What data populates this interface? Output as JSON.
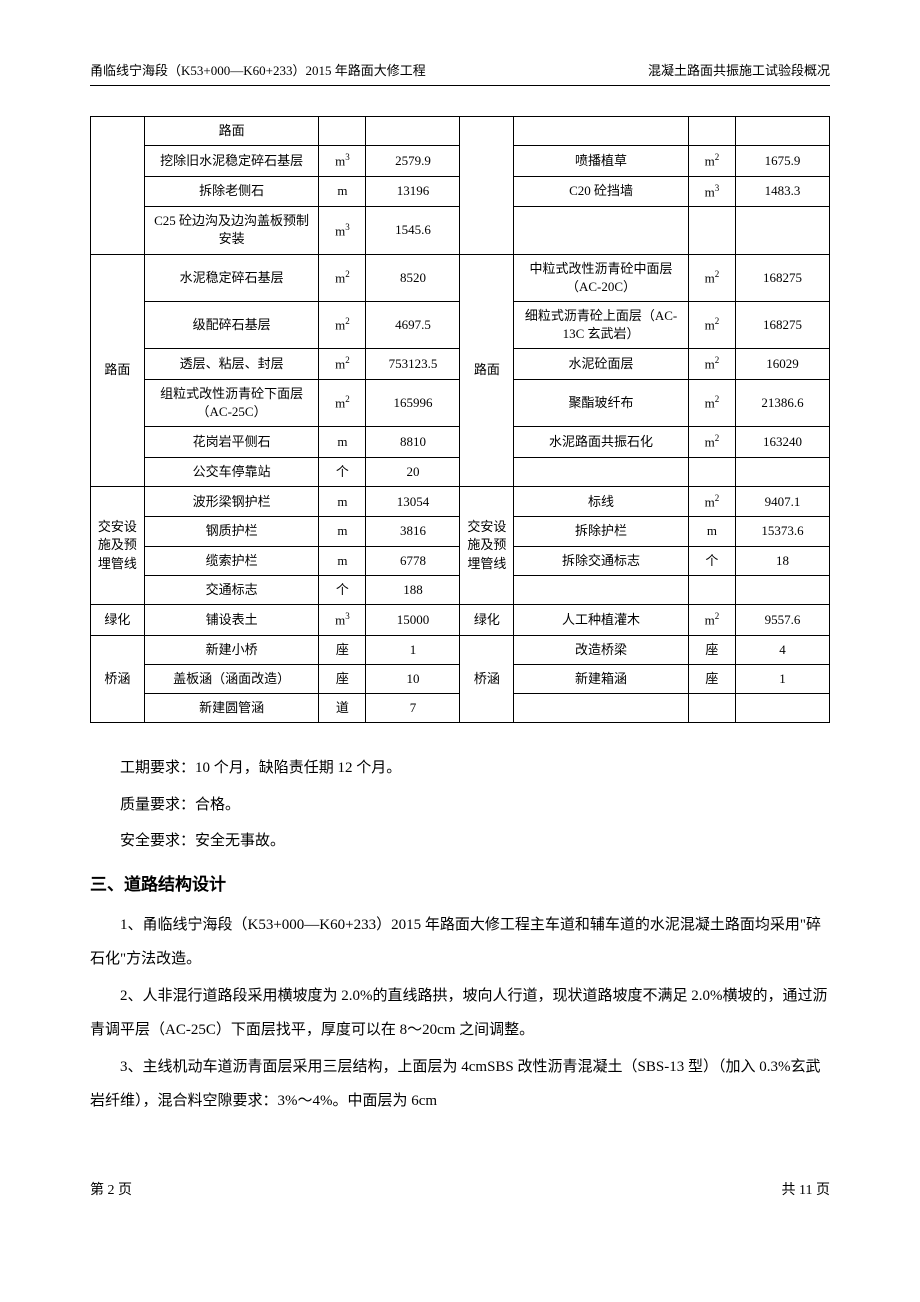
{
  "header": {
    "left": "甬临线宁海段（K53+000—K60+233）2015 年路面大修工程",
    "right": "混凝土路面共振施工试验段概况"
  },
  "table": {
    "rows": [
      {
        "c1": "",
        "c2": "路面",
        "c3": "",
        "c4": "",
        "c5": "",
        "c6": "",
        "c7": "",
        "c8": ""
      },
      {
        "c1": "",
        "c2": "挖除旧水泥稳定碎石基层",
        "c3": "m³",
        "c4": "2579.9",
        "c5": "",
        "c6": "喷播植草",
        "c7": "m²",
        "c8": "1675.9"
      },
      {
        "c1": "",
        "c2": "拆除老侧石",
        "c3": "m",
        "c4": "13196",
        "c5": "",
        "c6": "C20 砼挡墙",
        "c7": "m³",
        "c8": "1483.3"
      },
      {
        "c1": "",
        "c2": "C25 砼边沟及边沟盖板预制安装",
        "c3": "m³",
        "c4": "1545.6",
        "c5": "",
        "c6": "",
        "c7": "",
        "c8": ""
      },
      {
        "c1": "路面",
        "c2": "水泥稳定碎石基层",
        "c3": "m²",
        "c4": "8520",
        "c5": "路面",
        "c6": "中粒式改性沥青砼中面层（AC-20C）",
        "c7": "m²",
        "c8": "168275"
      },
      {
        "c1": "",
        "c2": "级配碎石基层",
        "c3": "m²",
        "c4": "4697.5",
        "c5": "",
        "c6": "细粒式沥青砼上面层（AC-13C 玄武岩）",
        "c7": "m²",
        "c8": "168275"
      },
      {
        "c1": "",
        "c2": "透层、粘层、封层",
        "c3": "m²",
        "c4": "753123.5",
        "c5": "",
        "c6": "水泥砼面层",
        "c7": "m²",
        "c8": "16029"
      },
      {
        "c1": "",
        "c2": "组粒式改性沥青砼下面层（AC-25C）",
        "c3": "m²",
        "c4": "165996",
        "c5": "",
        "c6": "聚酯玻纤布",
        "c7": "m²",
        "c8": "21386.6"
      },
      {
        "c1": "",
        "c2": "花岗岩平侧石",
        "c3": "m",
        "c4": "8810",
        "c5": "",
        "c6": "水泥路面共振石化",
        "c7": "m²",
        "c8": "163240"
      },
      {
        "c1": "",
        "c2": "公交车停靠站",
        "c3": "个",
        "c4": "20",
        "c5": "",
        "c6": "",
        "c7": "",
        "c8": ""
      },
      {
        "c1": "交安设施及预埋管线",
        "c2": "波形梁钢护栏",
        "c3": "m",
        "c4": "13054",
        "c5": "交安设施及预埋管线",
        "c6": "标线",
        "c7": "m²",
        "c8": "9407.1"
      },
      {
        "c1": "",
        "c2": "钢质护栏",
        "c3": "m",
        "c4": "3816",
        "c5": "",
        "c6": "拆除护栏",
        "c7": "m",
        "c8": "15373.6"
      },
      {
        "c1": "",
        "c2": "缆索护栏",
        "c3": "m",
        "c4": "6778",
        "c5": "",
        "c6": "拆除交通标志",
        "c7": "个",
        "c8": "18"
      },
      {
        "c1": "",
        "c2": "交通标志",
        "c3": "个",
        "c4": "188",
        "c5": "",
        "c6": "",
        "c7": "",
        "c8": ""
      },
      {
        "c1": "绿化",
        "c2": "铺设表土",
        "c3": "m³",
        "c4": "15000",
        "c5": "绿化",
        "c6": "人工种植灌木",
        "c7": "m²",
        "c8": "9557.6"
      },
      {
        "c1": "桥涵",
        "c2": "新建小桥",
        "c3": "座",
        "c4": "1",
        "c5": "桥涵",
        "c6": "改造桥梁",
        "c7": "座",
        "c8": "4"
      },
      {
        "c1": "",
        "c2": "盖板涵（涵面改造）",
        "c3": "座",
        "c4": "10",
        "c5": "",
        "c6": "新建箱涵",
        "c7": "座",
        "c8": "1"
      },
      {
        "c1": "",
        "c2": "新建圆管涵",
        "c3": "道",
        "c4": "7",
        "c5": "",
        "c6": "",
        "c7": "",
        "c8": ""
      }
    ]
  },
  "paragraphs": {
    "p1": "工期要求：10 个月，缺陷责任期 12 个月。",
    "p2": "质量要求：合格。",
    "p3": "安全要求：安全无事故。",
    "heading": "三、道路结构设计",
    "p4": "1、甬临线宁海段（K53+000—K60+233）2015 年路面大修工程主车道和辅车道的水泥混凝土路面均采用\"碎石化\"方法改造。",
    "p5": "2、人非混行道路段采用横坡度为 2.0%的直线路拱，坡向人行道，现状道路坡度不满足 2.0%横坡的，通过沥青调平层（AC-25C）下面层找平，厚度可以在 8～20cm 之间调整。",
    "p6": "3、主线机动车道沥青面层采用三层结构，上面层为 4cmSBS 改性沥青混凝土（SBS-13 型）（加入 0.3%玄武岩纤维），混合料空隙要求：3%～4%。中面层为 6cm"
  },
  "footer": {
    "left": "第 2 页",
    "right": "共 11 页"
  }
}
